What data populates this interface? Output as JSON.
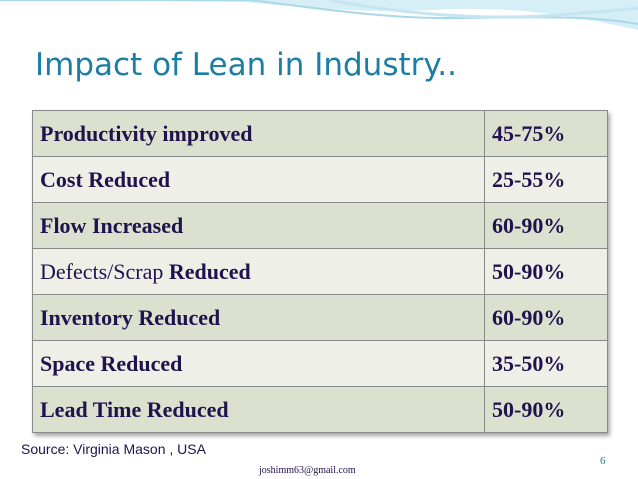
{
  "slide": {
    "title": "Impact of Lean in Industry..",
    "rows": [
      {
        "label": "Productivity improved",
        "value": "45-75%"
      },
      {
        "label": "Cost Reduced",
        "value": "25-55%"
      },
      {
        "label": "Flow Increased",
        "value": "60-90%"
      },
      {
        "label_prefix": "Defects/Scrap ",
        "label_suffix": "Reduced",
        "value": "50-90%"
      },
      {
        "label": "Inventory Reduced",
        "value": "60-90%"
      },
      {
        "label": "Space Reduced",
        "value": "35-50%"
      },
      {
        "label": "Lead Time Reduced",
        "value": "50-90%"
      }
    ],
    "source": "Source: Virginia Mason , USA",
    "email": "joshimm63@gmail.com",
    "page_number": "6"
  },
  "colors": {
    "title": "#1d7ea3",
    "table_text": "#20124d",
    "row_dark": "#dce1cf",
    "row_light": "#eef0e8",
    "wave": "#bfe3ef"
  }
}
